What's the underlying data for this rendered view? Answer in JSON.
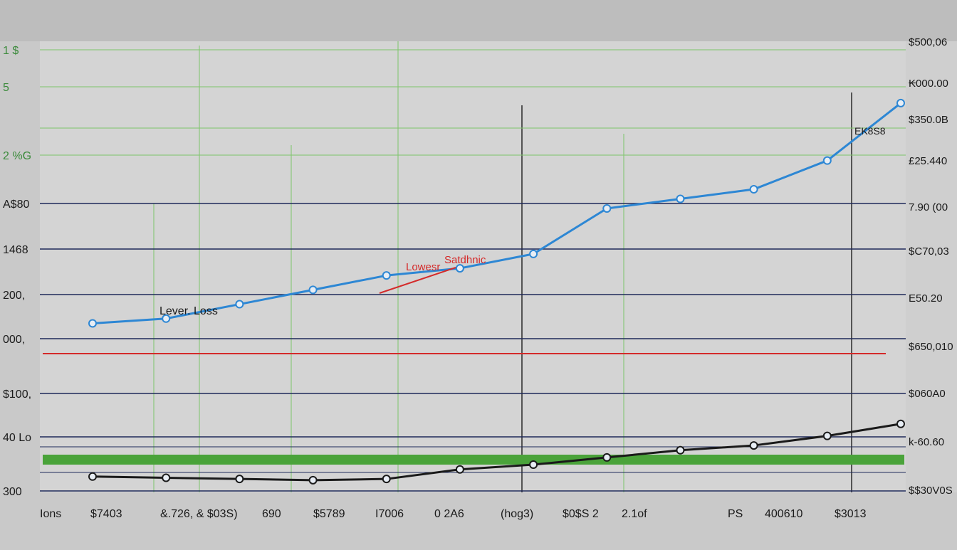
{
  "chart_data": {
    "type": "line",
    "title": "",
    "xlabel": "",
    "ylabel": "",
    "grid": true,
    "annotations": [
      "Lever. Loss",
      "Lowesr",
      "Satdhnic",
      "EK8S8"
    ],
    "y_ticks_left": [
      "1 $",
      "5",
      "2 %G",
      "A$80",
      "1468",
      "200,",
      "000,",
      "$100,",
      "40 Lo",
      "300"
    ],
    "y_ticks_right": [
      "$500,06",
      "₭000.00",
      "$350.0B",
      "£25.440",
      "7.90 (00",
      "$C70,03",
      "E50.20",
      "$650,010",
      "$060A0",
      "k-60.60",
      "$$30V0S"
    ],
    "x_ticks": [
      "Ions",
      "$7403",
      "&.726, & $03S)",
      "690",
      "$5789",
      "I7006",
      "0 2A6",
      "(hog3)",
      "$0$S 2",
      "2.1of",
      "PS",
      "400610",
      "$3013"
    ],
    "x": [
      1,
      2,
      3,
      4,
      5,
      6,
      7,
      8,
      9,
      10,
      11,
      12
    ],
    "series": [
      {
        "values": [
          1000,
          1020,
          1080,
          1140,
          1200,
          1230,
          1290,
          1480,
          1520,
          1560,
          1680,
          1920
        ]
      },
      {
        "values": [
          360,
          355,
          350,
          345,
          350,
          390,
          410,
          440,
          470,
          490,
          530,
          580
        ]
      }
    ],
    "ylim": [
      300,
      2000
    ],
    "colors": {
      "background": "#c9c9c9",
      "plot_background": "#d4d4d4",
      "series_1": "#2d87d4",
      "series_2": "#1a1a1a",
      "grid_green": "#7dc56a",
      "grid_navy": "#1e2a5a",
      "reference_red": "#d42a2a",
      "band_green": "#4aa33a"
    }
  }
}
